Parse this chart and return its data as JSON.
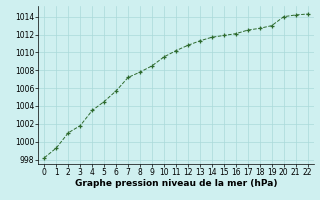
{
  "x": [
    0,
    1,
    2,
    3,
    4,
    5,
    6,
    7,
    8,
    9,
    10,
    11,
    12,
    13,
    14,
    15,
    16,
    17,
    18,
    19,
    20,
    21,
    22
  ],
  "y": [
    998.2,
    999.3,
    1001.0,
    1001.8,
    1003.5,
    1004.5,
    1005.7,
    1007.2,
    1007.8,
    1008.5,
    1009.5,
    1010.2,
    1010.8,
    1011.3,
    1011.7,
    1011.9,
    1012.1,
    1012.5,
    1012.7,
    1013.0,
    1014.0,
    1014.2,
    1014.3
  ],
  "xlim": [
    -0.5,
    22.5
  ],
  "ylim": [
    997.5,
    1015.2
  ],
  "xticks": [
    0,
    1,
    2,
    3,
    4,
    5,
    6,
    7,
    8,
    9,
    10,
    11,
    12,
    13,
    14,
    15,
    16,
    17,
    18,
    19,
    20,
    21,
    22
  ],
  "yticks": [
    998,
    1000,
    1002,
    1004,
    1006,
    1008,
    1010,
    1012,
    1014
  ],
  "xlabel": "Graphe pression niveau de la mer (hPa)",
  "line_color": "#2d6a2d",
  "marker": "+",
  "background_color": "#cff0f0",
  "grid_color": "#aadada",
  "tick_fontsize": 5.5,
  "xlabel_fontsize": 6.5,
  "title": ""
}
